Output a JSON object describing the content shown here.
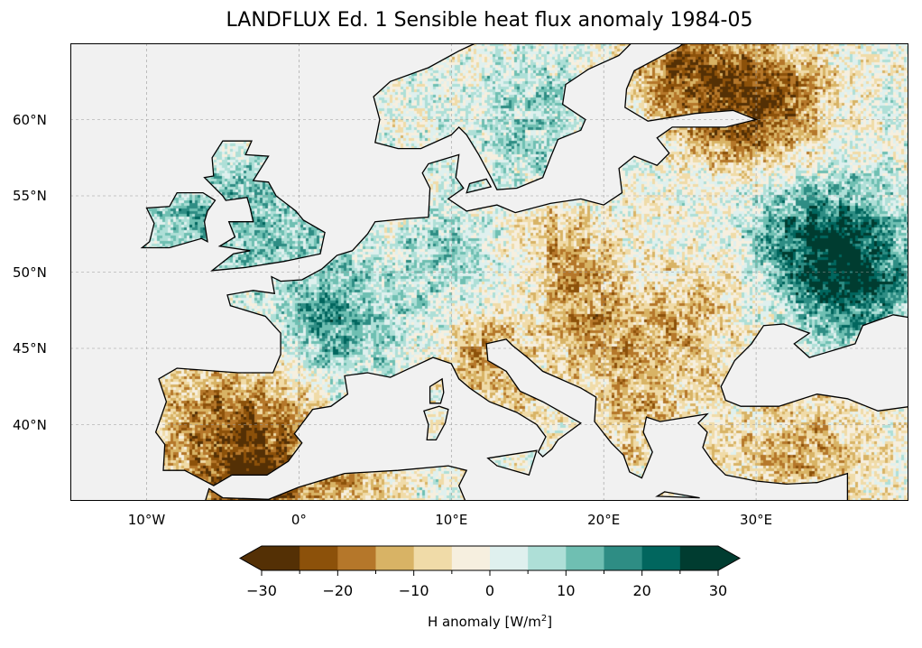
{
  "title": "LANDFLUX Ed. 1 Sensible heat flux anomaly 1984-05",
  "map": {
    "lon_range": [
      -15,
      40
    ],
    "lat_range": [
      35,
      65
    ],
    "x_ticks": [
      {
        "value": -10,
        "label": "10°W"
      },
      {
        "value": 0,
        "label": "0°"
      },
      {
        "value": 10,
        "label": "10°E"
      },
      {
        "value": 20,
        "label": "20°E"
      },
      {
        "value": 30,
        "label": "30°E"
      }
    ],
    "y_ticks": [
      {
        "value": 40,
        "label": "40°N"
      },
      {
        "value": 45,
        "label": "45°N"
      },
      {
        "value": 50,
        "label": "50°N"
      },
      {
        "value": 55,
        "label": "55°N"
      },
      {
        "value": 60,
        "label": "60°N"
      }
    ],
    "ocean_color": "#f1f1f1"
  },
  "colorbar": {
    "label_main": "H anomaly [W/m",
    "label_sup": "2",
    "label_end": "]",
    "range": [
      -30,
      30
    ],
    "boundaries": [
      -30,
      -25,
      -20,
      -15,
      -10,
      -5,
      0,
      5,
      10,
      15,
      20,
      25,
      30
    ],
    "colors": [
      "#543005",
      "#8c510a",
      "#b5772a",
      "#d8b365",
      "#f0dba8",
      "#f6efdf",
      "#dff0ee",
      "#aedfd7",
      "#6fbfb2",
      "#2e8d84",
      "#01665e",
      "#003c30"
    ],
    "ticks": [
      {
        "value": -30,
        "label": "−30"
      },
      {
        "value": -20,
        "label": "−20"
      },
      {
        "value": -10,
        "label": "−10"
      },
      {
        "value": 0,
        "label": "0"
      },
      {
        "value": 10,
        "label": "10"
      },
      {
        "value": 20,
        "label": "20"
      },
      {
        "value": 30,
        "label": "30"
      }
    ]
  }
}
